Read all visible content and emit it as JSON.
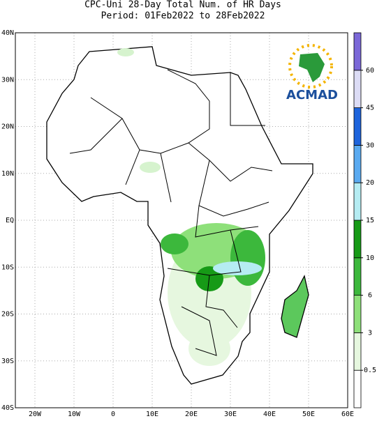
{
  "title": "CPC-Uni 28-Day Total Num. of HR Days",
  "subtitle": "Period: 01Feb2022 to 28Feb2022",
  "logo": "ACMAD",
  "map": {
    "xlim": [
      -25,
      60
    ],
    "ylim": [
      -40,
      40
    ],
    "xticks": [
      {
        "value": -20,
        "label": "20W"
      },
      {
        "value": -10,
        "label": "10W"
      },
      0,
      {
        "value": 10,
        "label": "10E"
      },
      {
        "value": 20,
        "label": "20E"
      },
      {
        "value": 30,
        "label": "30E"
      },
      {
        "value": 40,
        "label": "40E"
      },
      {
        "value": 50,
        "label": "50E"
      },
      {
        "value": 60,
        "label": "60E"
      }
    ],
    "yticks": [
      {
        "value": 40,
        "label": "40N"
      },
      {
        "value": 30,
        "label": "30N"
      },
      {
        "value": 20,
        "label": "20N"
      },
      {
        "value": 10,
        "label": "10N"
      },
      {
        "value": 0,
        "label": "EQ"
      },
      {
        "value": -10,
        "label": "10S"
      },
      {
        "value": -20,
        "label": "20S"
      },
      {
        "value": -30,
        "label": "30S"
      },
      {
        "value": -40,
        "label": "40S"
      }
    ],
    "grid": true
  },
  "colorbar": {
    "levels": [
      0.5,
      3,
      6,
      10,
      15,
      20,
      30,
      45,
      60
    ],
    "colors": [
      "#ffffff",
      "#e6f7df",
      "#8ee07a",
      "#3cb83c",
      "#169a16",
      "#b5ecf2",
      "#5aaaf0",
      "#1e64dc",
      "#dcdcf5",
      "#7b68d8"
    ]
  }
}
